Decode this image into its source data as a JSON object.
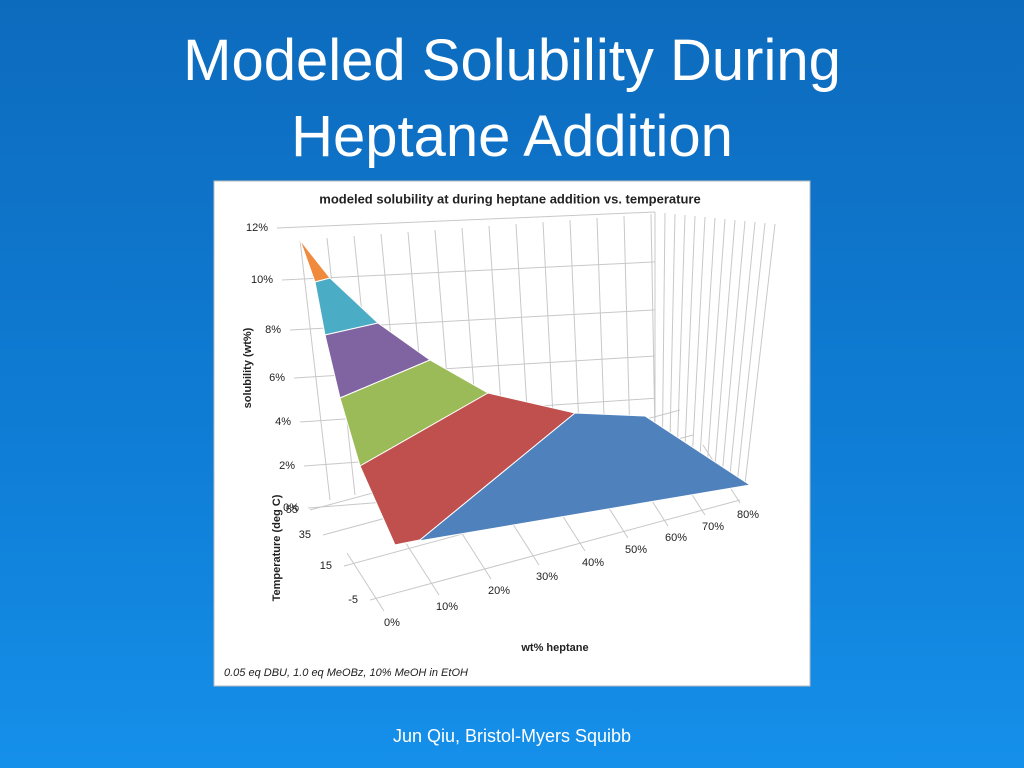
{
  "slide": {
    "title_lines": [
      "Modeled Solubility During",
      "Heptane Addition"
    ],
    "footer": "Jun Qiu, Bristol-Myers Squibb"
  },
  "chart_data": {
    "type": "surface",
    "title": "modeled solubility at during heptane addition vs. temperature",
    "z_label": "solubility (wt%)",
    "y_label": "Temperature (deg C)",
    "x_label": "wt% heptane",
    "note": "0.05 eq DBU, 1.0 eq MeOBz, 10% MeOH in EtOH",
    "zticks": [
      {
        "value": 0,
        "label": "0%"
      },
      {
        "value": 2,
        "label": "2%"
      },
      {
        "value": 4,
        "label": "4%"
      },
      {
        "value": 6,
        "label": "6%"
      },
      {
        "value": 8,
        "label": "8%"
      },
      {
        "value": 10,
        "label": "10%"
      },
      {
        "value": 12,
        "label": "12%"
      }
    ],
    "yticks": [
      -5,
      15,
      35,
      55
    ],
    "xticks": [
      {
        "value": 0,
        "label": "0%"
      },
      {
        "value": 10,
        "label": "10%"
      },
      {
        "value": 20,
        "label": "20%"
      },
      {
        "value": 30,
        "label": "30%"
      },
      {
        "value": 40,
        "label": "40%"
      },
      {
        "value": 50,
        "label": "50%"
      },
      {
        "value": 60,
        "label": "60%"
      },
      {
        "value": 70,
        "label": "70%"
      },
      {
        "value": 80,
        "label": "80%"
      }
    ]
  }
}
